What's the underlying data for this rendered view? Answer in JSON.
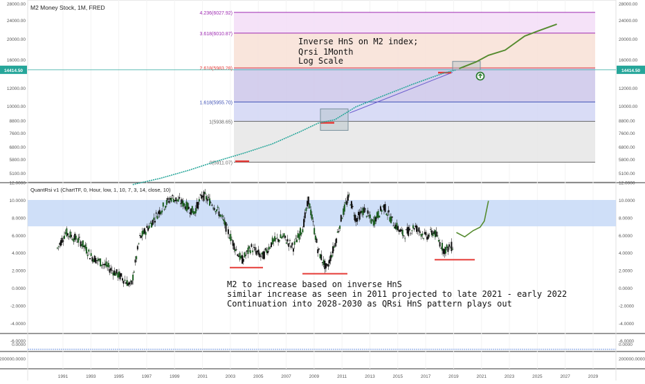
{
  "chart_data": [
    {
      "type": "line",
      "title": "M2 Money Stock, 1M, FRED",
      "price_scale": "log",
      "y_ticks_left": [
        "28000.00",
        "24000.00",
        "20000.00",
        "16000.00",
        "14414.50",
        "12000.00",
        "10000.00",
        "8800.00",
        "7600.00",
        "6800.00",
        "5800.00",
        "5100.00"
      ],
      "y_ticks_right": [
        "28000.00",
        "24000.00",
        "20000.00",
        "16000.00",
        "14414.50",
        "12000.00",
        "10000.00",
        "8800.00",
        "7600.00",
        "6800.00",
        "5800.00",
        "5100.00"
      ],
      "current_value": "14414.50",
      "fib_levels": [
        {
          "label": "4.236(6027.92)",
          "value": 25800,
          "color": "#9c27b0"
        },
        {
          "label": "3.618(6010.87)",
          "value": 20900,
          "color": "#9c27b0"
        },
        {
          "label": "2.618(5983.28)",
          "value": 14700,
          "color": "#e53935"
        },
        {
          "label": "1.618(5955.70)",
          "value": 10400,
          "color": "#3f51b5"
        },
        {
          "label": "1(5938.65)",
          "value": 8550,
          "color": "#666666"
        },
        {
          "label": "0(5911.07)",
          "value": 5650,
          "color": "#666666"
        }
      ],
      "series": [
        {
          "values": [
            [
              1996,
              4500
            ],
            [
              1998,
              4800
            ],
            [
              2000,
              5200
            ],
            [
              2002,
              5700
            ],
            [
              2004,
              6200
            ],
            [
              2006,
              6800
            ],
            [
              2008,
              7700
            ],
            [
              2009.3,
              8400
            ],
            [
              2010.5,
              8700
            ],
            [
              2012,
              9900
            ],
            [
              2014,
              11100
            ],
            [
              2016,
              12400
            ],
            [
              2017.5,
              13400
            ],
            [
              2018.4,
              14000
            ],
            [
              2019.2,
              14400
            ]
          ]
        },
        {
          "values": [
            [
              2019.4,
              14600
            ],
            [
              2020,
              15100
            ],
            [
              2020.6,
              15600
            ],
            [
              2021.5,
              16700
            ],
            [
              2022.7,
              17600
            ],
            [
              2024.1,
              20300
            ],
            [
              2025,
              21300
            ],
            [
              2026.4,
              22900
            ]
          ]
        }
      ],
      "annotation": [
        "Inverse HnS on M2 index;",
        "Qrsi 1Month",
        "Log Scale"
      ]
    },
    {
      "type": "bar",
      "title": "QuantRsi v1 (ChartTF, 0, Hour, low, 1, 10, 7, 3, 14, close, 10)",
      "y_ticks": [
        "12.0000",
        "10.0000",
        "8.0000",
        "6.0000",
        "4.0000",
        "2.0000",
        "0.0000",
        "-2.0000",
        "-4.0000",
        "-6.0000"
      ],
      "band": [
        7,
        10
      ],
      "projection": [
        [
          2019.2,
          6.3
        ],
        [
          2019.8,
          5.8
        ],
        [
          2020.4,
          6.5
        ],
        [
          2020.9,
          6.9
        ],
        [
          2021.2,
          7.6
        ],
        [
          2021.5,
          9.9
        ]
      ],
      "annotation": [
        "M2 to increase based on inverse HnS",
        "similar increase as seen in 2011 projected to late 2021 - early 2022",
        "Continuation into 2028-2030 as QRsi HnS pattern plays out"
      ]
    },
    {
      "type": "line",
      "y_ticks": [
        "0.0000"
      ]
    },
    {
      "type": "line",
      "y_ticks": [
        "200000.0000"
      ]
    }
  ],
  "x_axis": {
    "labels": [
      "1991",
      "1993",
      "1995",
      "1997",
      "1999",
      "2001",
      "2003",
      "2005",
      "2007",
      "2009",
      "2011",
      "2013",
      "2015",
      "2017",
      "2019",
      "2021",
      "2023",
      "2025",
      "2027",
      "2029"
    ]
  },
  "colors": {
    "m2": "#26a69a",
    "projection": "#558b2f",
    "band": "#c7d9f7",
    "support": "#e53935",
    "box": "#90a4ae"
  }
}
